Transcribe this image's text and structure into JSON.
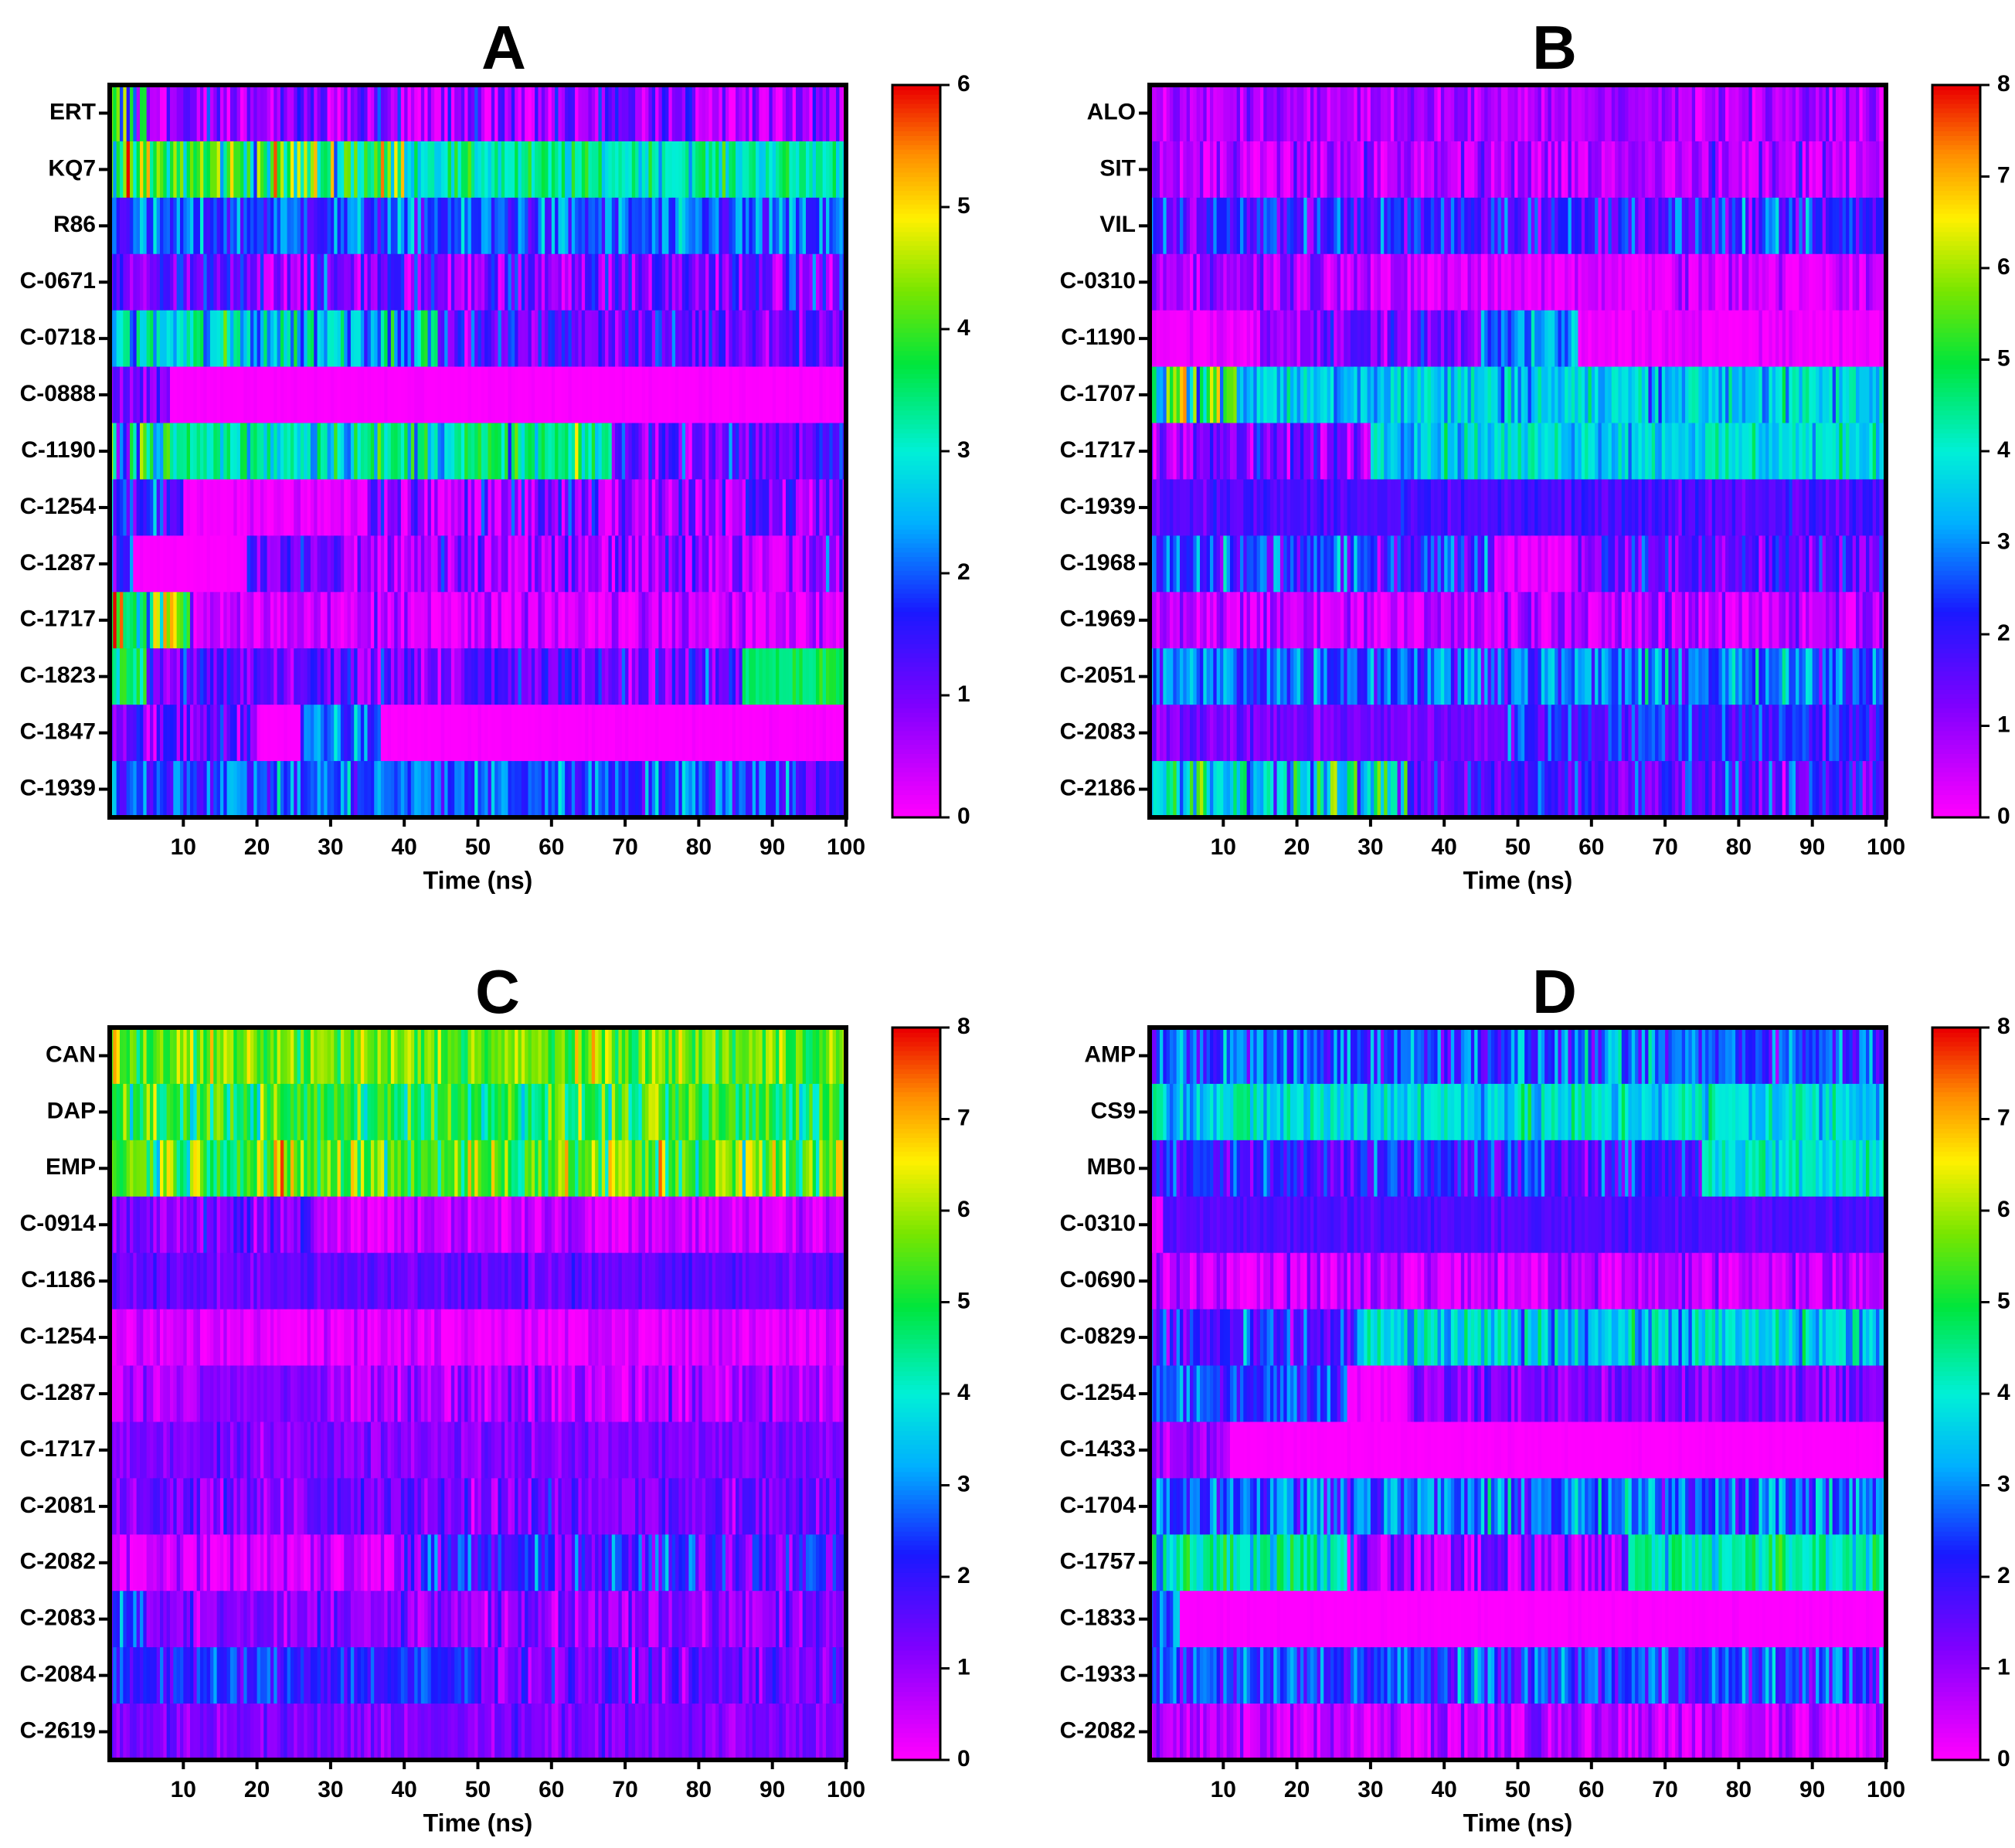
{
  "chart_data": [
    {
      "type": "heatmap",
      "panel_label": "A",
      "xlabel": "Time (ns)",
      "xlim": [
        0,
        100
      ],
      "xticks": [
        "10",
        "20",
        "30",
        "40",
        "50",
        "60",
        "70",
        "80",
        "90",
        "100"
      ],
      "rows": [
        "ERT",
        "KQ7",
        "R86",
        "C-0671",
        "C-0718",
        "C-0888",
        "C-1190",
        "C-1254",
        "C-1287",
        "C-1717",
        "C-1823",
        "C-1847",
        "C-1939"
      ],
      "colorbar": {
        "min": 0,
        "max": 6,
        "ticks": [
          "0",
          "1",
          "2",
          "3",
          "4",
          "5",
          "6"
        ]
      },
      "segments": [
        [
          [
            0,
            5,
            2.5,
            1.8
          ],
          [
            5,
            100,
            0.7,
            0.6
          ]
        ],
        [
          [
            0,
            40,
            3.8,
            0.9
          ],
          [
            40,
            100,
            3.2,
            0.4
          ]
        ],
        [
          [
            0,
            100,
            1.9,
            0.5
          ]
        ],
        [
          [
            0,
            100,
            1.0,
            0.6
          ]
        ],
        [
          [
            0,
            45,
            2.8,
            0.7
          ],
          [
            45,
            100,
            1.2,
            0.5
          ]
        ],
        [
          [
            0,
            8,
            1.0,
            0.4
          ],
          [
            8,
            100,
            0.0,
            0.05
          ]
        ],
        [
          [
            0,
            5,
            3.5,
            1.5
          ],
          [
            5,
            68,
            3.2,
            0.6
          ],
          [
            68,
            100,
            1.2,
            0.5
          ]
        ],
        [
          [
            0,
            10,
            1.5,
            0.8
          ],
          [
            10,
            35,
            0.1,
            0.2
          ],
          [
            35,
            100,
            0.9,
            0.6
          ]
        ],
        [
          [
            0,
            3,
            1.5,
            0.5
          ],
          [
            3,
            18,
            0.0,
            0.05
          ],
          [
            18,
            32,
            1.0,
            0.5
          ],
          [
            32,
            95,
            0.5,
            0.6
          ],
          [
            95,
            100,
            1.0,
            0.5
          ]
        ],
        [
          [
            0,
            11,
            3.8,
            1.2
          ],
          [
            11,
            100,
            0.3,
            0.4
          ]
        ],
        [
          [
            0,
            5,
            3.5,
            0.5
          ],
          [
            5,
            86,
            1.1,
            0.5
          ],
          [
            86,
            100,
            3.6,
            0.3
          ]
        ],
        [
          [
            0,
            20,
            1.0,
            0.6
          ],
          [
            20,
            26,
            0.0,
            0.05
          ],
          [
            26,
            37,
            2.2,
            0.5
          ],
          [
            37,
            100,
            0.0,
            0.05
          ]
        ],
        [
          [
            0,
            93,
            2.0,
            0.5
          ],
          [
            93,
            100,
            1.2,
            0.3
          ]
        ]
      ]
    },
    {
      "type": "heatmap",
      "panel_label": "B",
      "xlabel": "Time (ns)",
      "xlim": [
        0,
        100
      ],
      "xticks": [
        "10",
        "20",
        "30",
        "40",
        "50",
        "60",
        "70",
        "80",
        "90",
        "100"
      ],
      "rows": [
        "ALO",
        "SIT",
        "VIL",
        "C-0310",
        "C-1190",
        "C-1707",
        "C-1717",
        "C-1939",
        "C-1968",
        "C-1969",
        "C-2051",
        "C-2083",
        "C-2186"
      ],
      "colorbar": {
        "min": 0,
        "max": 8,
        "ticks": [
          "0",
          "1",
          "2",
          "3",
          "4",
          "5",
          "6",
          "7",
          "8"
        ]
      },
      "segments": [
        [
          [
            0,
            100,
            0.8,
            0.4
          ]
        ],
        [
          [
            0,
            100,
            0.6,
            0.6
          ]
        ],
        [
          [
            0,
            100,
            2.0,
            0.7
          ]
        ],
        [
          [
            0,
            30,
            1.0,
            0.5
          ],
          [
            30,
            100,
            0.3,
            0.5
          ]
        ],
        [
          [
            0,
            15,
            0.1,
            0.3
          ],
          [
            15,
            45,
            1.3,
            0.6
          ],
          [
            45,
            58,
            3.0,
            0.5
          ],
          [
            58,
            100,
            0.1,
            0.2
          ]
        ],
        [
          [
            0,
            12,
            5.0,
            1.5
          ],
          [
            12,
            100,
            3.6,
            0.6
          ]
        ],
        [
          [
            0,
            30,
            1.2,
            0.7
          ],
          [
            30,
            100,
            3.8,
            0.5
          ]
        ],
        [
          [
            0,
            100,
            1.7,
            0.3
          ]
        ],
        [
          [
            0,
            47,
            2.3,
            0.8
          ],
          [
            47,
            58,
            0.3,
            0.3
          ],
          [
            58,
            100,
            1.6,
            0.6
          ]
        ],
        [
          [
            0,
            48,
            0.5,
            0.5
          ],
          [
            48,
            100,
            0.6,
            0.6
          ]
        ],
        [
          [
            0,
            100,
            2.8,
            0.7
          ]
        ],
        [
          [
            0,
            48,
            1.3,
            0.3
          ],
          [
            48,
            100,
            2.2,
            0.6
          ]
        ],
        [
          [
            0,
            35,
            3.8,
            1.1
          ],
          [
            35,
            100,
            1.8,
            0.7
          ]
        ]
      ]
    },
    {
      "type": "heatmap",
      "panel_label": "C",
      "xlabel": "Time (ns)",
      "xlim": [
        0,
        100
      ],
      "xticks": [
        "10",
        "20",
        "30",
        "40",
        "50",
        "60",
        "70",
        "80",
        "90",
        "100"
      ],
      "rows": [
        "CAN",
        "DAP",
        "EMP",
        "C-0914",
        "C-1186",
        "C-1254",
        "C-1287",
        "C-1717",
        "C-2081",
        "C-2082",
        "C-2083",
        "C-2084",
        "C-2619"
      ],
      "colorbar": {
        "min": 0,
        "max": 8,
        "ticks": [
          "0",
          "1",
          "2",
          "3",
          "4",
          "5",
          "6",
          "7",
          "8"
        ]
      },
      "segments": [
        [
          [
            0,
            100,
            5.6,
            0.6
          ]
        ],
        [
          [
            0,
            100,
            5.0,
            0.7
          ]
        ],
        [
          [
            0,
            100,
            5.5,
            0.9
          ]
        ],
        [
          [
            0,
            28,
            1.3,
            0.5
          ],
          [
            28,
            100,
            0.5,
            0.4
          ]
        ],
        [
          [
            0,
            100,
            1.5,
            0.3
          ]
        ],
        [
          [
            0,
            100,
            0.3,
            0.3
          ]
        ],
        [
          [
            0,
            12,
            0.6,
            0.5
          ],
          [
            12,
            30,
            1.1,
            0.2
          ],
          [
            30,
            100,
            0.7,
            0.5
          ]
        ],
        [
          [
            0,
            100,
            1.2,
            0.3
          ]
        ],
        [
          [
            0,
            100,
            1.3,
            0.5
          ]
        ],
        [
          [
            0,
            40,
            0.5,
            0.5
          ],
          [
            40,
            100,
            1.9,
            0.8
          ]
        ],
        [
          [
            0,
            5,
            2.4,
            0.5
          ],
          [
            5,
            100,
            1.1,
            0.5
          ]
        ],
        [
          [
            0,
            50,
            2.2,
            0.5
          ],
          [
            50,
            100,
            1.4,
            0.5
          ]
        ],
        [
          [
            0,
            100,
            1.2,
            0.3
          ]
        ]
      ]
    },
    {
      "type": "heatmap",
      "panel_label": "D",
      "xlabel": "Time (ns)",
      "xlim": [
        0,
        100
      ],
      "xticks": [
        "10",
        "20",
        "30",
        "40",
        "50",
        "60",
        "70",
        "80",
        "90",
        "100"
      ],
      "rows": [
        "AMP",
        "CS9",
        "MB0",
        "C-0310",
        "C-0690",
        "C-0829",
        "C-1254",
        "C-1433",
        "C-1704",
        "C-1757",
        "C-1833",
        "C-1933",
        "C-2082"
      ],
      "colorbar": {
        "min": 0,
        "max": 8,
        "ticks": [
          "0",
          "1",
          "2",
          "3",
          "4",
          "5",
          "6",
          "7",
          "8"
        ]
      },
      "segments": [
        [
          [
            0,
            100,
            2.6,
            0.7
          ]
        ],
        [
          [
            0,
            100,
            3.8,
            0.6
          ]
        ],
        [
          [
            0,
            75,
            2.0,
            0.6
          ],
          [
            75,
            100,
            4.0,
            0.5
          ]
        ],
        [
          [
            0,
            2,
            0.2,
            0.2
          ],
          [
            2,
            100,
            1.7,
            0.2
          ]
        ],
        [
          [
            0,
            100,
            0.6,
            0.5
          ]
        ],
        [
          [
            0,
            28,
            1.8,
            0.8
          ],
          [
            28,
            100,
            3.6,
            0.6
          ]
        ],
        [
          [
            0,
            27,
            2.5,
            0.5
          ],
          [
            27,
            35,
            0.1,
            0.2
          ],
          [
            35,
            100,
            1.2,
            0.4
          ]
        ],
        [
          [
            0,
            11,
            1.0,
            0.3
          ],
          [
            11,
            100,
            0.0,
            0.05
          ]
        ],
        [
          [
            0,
            100,
            2.8,
            0.7
          ]
        ],
        [
          [
            0,
            27,
            4.2,
            0.8
          ],
          [
            27,
            65,
            1.0,
            0.8
          ],
          [
            65,
            100,
            4.3,
            0.6
          ]
        ],
        [
          [
            0,
            4,
            2.5,
            0.5
          ],
          [
            4,
            100,
            0.0,
            0.05
          ]
        ],
        [
          [
            0,
            100,
            2.4,
            0.7
          ]
        ],
        [
          [
            0,
            100,
            0.6,
            0.5
          ]
        ]
      ]
    }
  ]
}
